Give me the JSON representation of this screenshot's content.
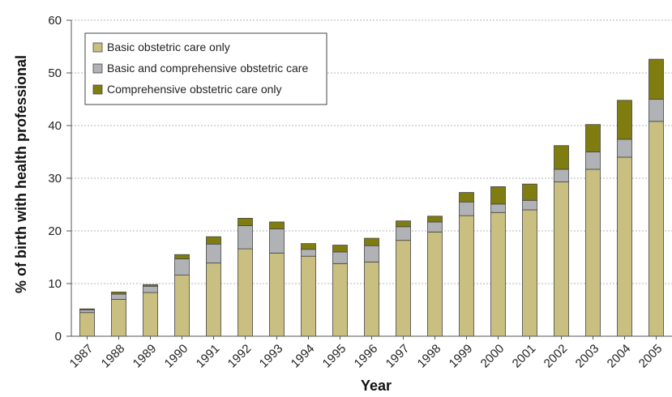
{
  "chart_data": {
    "type": "bar",
    "stacked": true,
    "title": "",
    "xlabel": "Year",
    "ylabel": "% of birth with health professional",
    "ylim": [
      0,
      60
    ],
    "yticks": [
      0,
      10,
      20,
      30,
      40,
      50,
      60
    ],
    "grid": "horizontal dashed",
    "legend_position": "top-left",
    "categories": [
      "1987",
      "1988",
      "1989",
      "1990",
      "1991",
      "1992",
      "1993",
      "1994",
      "1995",
      "1996",
      "1997",
      "1998",
      "1999",
      "2000",
      "2001",
      "2002",
      "2003",
      "2004",
      "2005"
    ],
    "series": [
      {
        "name": "Basic obstetric care only",
        "color": "#c8bf80",
        "values": [
          4.5,
          7.0,
          8.3,
          11.6,
          13.9,
          16.6,
          15.8,
          15.2,
          13.8,
          14.1,
          18.2,
          19.8,
          22.9,
          23.5,
          24.0,
          29.3,
          31.7,
          34.0,
          40.8
        ]
      },
      {
        "name": "Basic and comprehensive obstetric care",
        "color": "#b0b2b6",
        "values": [
          0.5,
          1.0,
          1.2,
          3.1,
          3.6,
          4.4,
          4.6,
          1.3,
          2.2,
          3.1,
          2.6,
          1.9,
          2.6,
          1.6,
          1.8,
          2.4,
          3.3,
          3.4,
          4.2
        ]
      },
      {
        "name": "Comprehensive obstetric care only",
        "color": "#7f7c10",
        "values": [
          0.2,
          0.4,
          0.3,
          0.8,
          1.4,
          1.4,
          1.3,
          1.1,
          1.3,
          1.4,
          1.1,
          1.1,
          1.8,
          3.3,
          3.1,
          4.5,
          5.2,
          7.4,
          7.6
        ]
      }
    ]
  }
}
